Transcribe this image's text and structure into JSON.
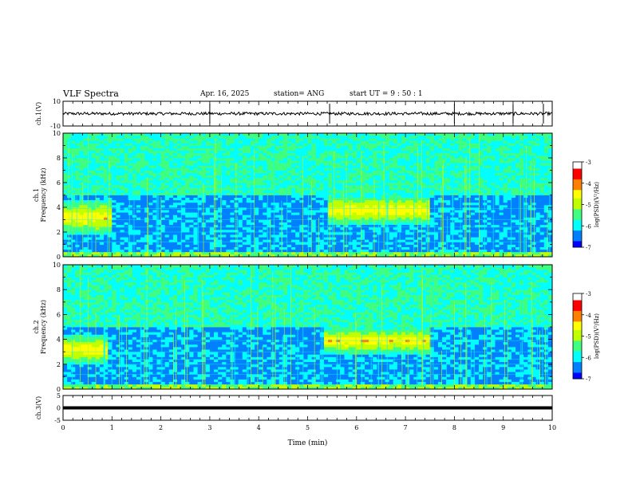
{
  "header": {
    "title": "VLF Spectra",
    "date": "Apr. 16, 2025",
    "station": "station= ANG",
    "start": "start  UT =   9 : 50 : 1"
  },
  "chart_data": [
    {
      "type": "line",
      "panel": "ch1_waveform",
      "ylabel": "ch.1(V)",
      "ylim": [
        -10,
        10
      ],
      "yticks": [
        "10",
        "-10"
      ],
      "xlim": [
        0,
        10
      ],
      "baseline": 0,
      "spikes_min": [
        3.0,
        5.45,
        8.0,
        9.2,
        9.82
      ]
    },
    {
      "type": "heatmap",
      "panel": "ch1_spectrogram",
      "ylabel": "ch.1\nFrequency (kHz)",
      "ylabel_lines": [
        "ch.1",
        "Frequency (kHz)"
      ],
      "ylim": [
        0,
        10
      ],
      "yticks": [
        "0",
        "2",
        "4",
        "6",
        "8",
        "10"
      ],
      "xlim": [
        0,
        10
      ],
      "colorbar": {
        "label": "log(PSD)(V²/Hz)",
        "range": [
          -7,
          -3
        ],
        "ticks": [
          "-3",
          "-4",
          "-5",
          "-6",
          "-7"
        ]
      },
      "features": [
        {
          "name": "hiss",
          "t0": 0,
          "t1": 1.0,
          "f0": 1.8,
          "f1": 4.6
        },
        {
          "name": "hiss",
          "t0": 5.4,
          "t1": 7.5,
          "f0": 2.6,
          "f1": 5.0
        }
      ]
    },
    {
      "type": "heatmap",
      "panel": "ch2_spectrogram",
      "ylabel_lines": [
        "ch.2",
        "Frequency (kHz)"
      ],
      "ylim": [
        0,
        10
      ],
      "yticks": [
        "0",
        "2",
        "4",
        "6",
        "8",
        "10"
      ],
      "xlim": [
        0,
        10
      ],
      "colorbar": {
        "label": "log(PSD)(V²/Hz)",
        "range": [
          -7,
          -3
        ],
        "ticks": [
          "-3",
          "-4",
          "-5",
          "-6",
          "-7"
        ]
      },
      "features": [
        {
          "name": "hiss",
          "t0": 0,
          "t1": 0.9,
          "f0": 2.0,
          "f1": 4.4
        },
        {
          "name": "hiss",
          "t0": 5.3,
          "t1": 7.5,
          "f0": 2.8,
          "f1": 5.0
        }
      ]
    },
    {
      "type": "line",
      "panel": "ch3_waveform",
      "ylabel": "ch.3(V)",
      "ylim": [
        -5,
        5
      ],
      "yticks": [
        "5",
        "0",
        "-5"
      ],
      "xlim": [
        0,
        10
      ],
      "baseline": 0
    }
  ],
  "xaxis": {
    "label": "Time (min)",
    "ticks": [
      "0",
      "1",
      "2",
      "3",
      "4",
      "5",
      "6",
      "7",
      "8",
      "9",
      "10"
    ]
  },
  "colors": {
    "colormap": [
      "#00007f",
      "#0000ff",
      "#0080ff",
      "#00ffff",
      "#40ff80",
      "#c0ff00",
      "#ffff00",
      "#ff8000",
      "#ff0000",
      "#ffffff"
    ]
  }
}
